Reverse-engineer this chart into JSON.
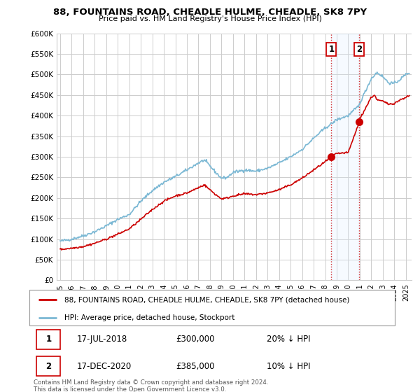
{
  "title1": "88, FOUNTAINS ROAD, CHEADLE HULME, CHEADLE, SK8 7PY",
  "title2": "Price paid vs. HM Land Registry's House Price Index (HPI)",
  "ylim": [
    0,
    600000
  ],
  "yticks": [
    0,
    50000,
    100000,
    150000,
    200000,
    250000,
    300000,
    350000,
    400000,
    450000,
    500000,
    550000,
    600000
  ],
  "ytick_labels": [
    "£0",
    "£50K",
    "£100K",
    "£150K",
    "£200K",
    "£250K",
    "£300K",
    "£350K",
    "£400K",
    "£450K",
    "£500K",
    "£550K",
    "£600K"
  ],
  "hpi_color": "#7bb8d4",
  "price_color": "#cc0000",
  "shade_color": "#ddeeff",
  "sale1_date": 2018.54,
  "sale1_price": 300000,
  "sale1_label": "1",
  "sale2_date": 2020.96,
  "sale2_price": 385000,
  "sale2_label": "2",
  "legend_house_label": "88, FOUNTAINS ROAD, CHEADLE HULME, CHEADLE, SK8 7PY (detached house)",
  "legend_hpi_label": "HPI: Average price, detached house, Stockport",
  "table_row1": [
    "1",
    "17-JUL-2018",
    "£300,000",
    "20% ↓ HPI"
  ],
  "table_row2": [
    "2",
    "17-DEC-2020",
    "£385,000",
    "10% ↓ HPI"
  ],
  "footnote": "Contains HM Land Registry data © Crown copyright and database right 2024.\nThis data is licensed under the Open Government Licence v3.0.",
  "background_color": "#ffffff",
  "grid_color": "#cccccc",
  "xlim_left": 1994.7,
  "xlim_right": 2025.5
}
